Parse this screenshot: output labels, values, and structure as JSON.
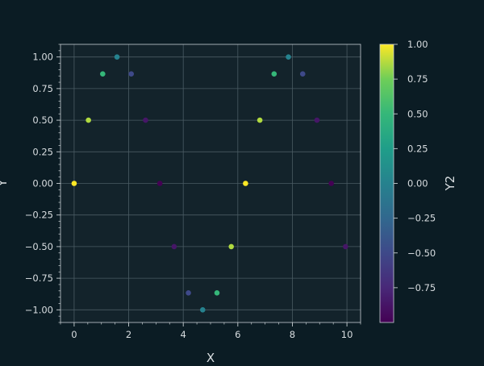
{
  "chart_data": {
    "type": "scatter",
    "title": "",
    "xlabel": "X",
    "ylabel": "Y",
    "colorbar_label": "Y2",
    "xlim": [
      -0.5,
      10.5
    ],
    "ylim": [
      -1.1,
      1.1
    ],
    "clim": [
      -1.0,
      1.0
    ],
    "xticks": [
      0,
      2,
      4,
      6,
      8,
      10
    ],
    "xtick_labels": [
      "0",
      "2",
      "4",
      "6",
      "8",
      "10"
    ],
    "yticks": [
      -1.0,
      -0.75,
      -0.5,
      -0.25,
      0.0,
      0.25,
      0.5,
      0.75,
      1.0
    ],
    "ytick_labels": [
      "−1.00",
      "−0.75",
      "−0.50",
      "−0.25",
      "0.00",
      "0.25",
      "0.50",
      "0.75",
      "1.00"
    ],
    "cticks": [
      -0.75,
      -0.5,
      -0.25,
      0.0,
      0.25,
      0.5,
      0.75,
      1.0
    ],
    "ctick_labels": [
      "−0.75",
      "−0.50",
      "−0.25",
      "0.00",
      "0.25",
      "0.50",
      "0.75",
      "1.00"
    ],
    "grid": true,
    "colormap": "viridis",
    "points": [
      {
        "x": 0.0,
        "y": 0.0,
        "c": 1.0
      },
      {
        "x": 0.524,
        "y": 0.5,
        "c": 0.866
      },
      {
        "x": 1.047,
        "y": 0.866,
        "c": 0.5
      },
      {
        "x": 1.571,
        "y": 1.0,
        "c": 0.0
      },
      {
        "x": 2.094,
        "y": 0.866,
        "c": -0.5
      },
      {
        "x": 2.618,
        "y": 0.5,
        "c": -0.866
      },
      {
        "x": 3.142,
        "y": 0.0,
        "c": -1.0
      },
      {
        "x": 3.665,
        "y": -0.5,
        "c": -0.866
      },
      {
        "x": 4.189,
        "y": -0.866,
        "c": -0.5
      },
      {
        "x": 4.712,
        "y": -1.0,
        "c": 0.0
      },
      {
        "x": 5.236,
        "y": -0.866,
        "c": 0.5
      },
      {
        "x": 5.76,
        "y": -0.5,
        "c": 0.866
      },
      {
        "x": 6.283,
        "y": 0.0,
        "c": 1.0
      },
      {
        "x": 6.807,
        "y": 0.5,
        "c": 0.866
      },
      {
        "x": 7.33,
        "y": 0.866,
        "c": 0.5
      },
      {
        "x": 7.854,
        "y": 1.0,
        "c": 0.0
      },
      {
        "x": 8.378,
        "y": 0.866,
        "c": -0.5
      },
      {
        "x": 8.901,
        "y": 0.5,
        "c": -0.866
      },
      {
        "x": 9.425,
        "y": 0.0,
        "c": -1.0
      },
      {
        "x": 9.948,
        "y": -0.5,
        "c": -0.866
      }
    ]
  }
}
